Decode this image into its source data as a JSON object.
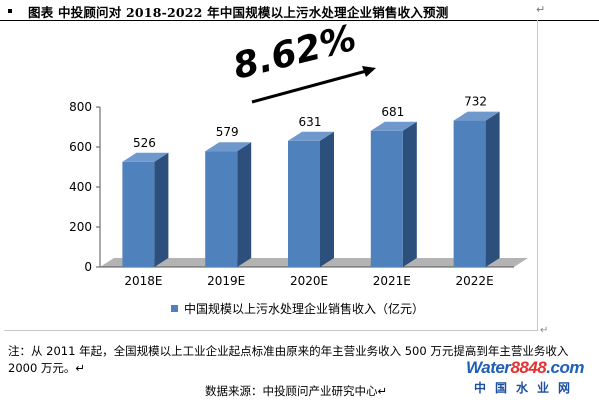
{
  "header": {
    "title": "图表   中投顾问对 2018-2022 年中国规模以上污水处理企业销售收入预测",
    "para_mark": "↵"
  },
  "chart_data": {
    "type": "bar",
    "categories": [
      "2018E",
      "2019E",
      "2020E",
      "2021E",
      "2022E"
    ],
    "series": [
      {
        "name": "中国规模以上污水处理企业销售收入（亿元）",
        "values": [
          526,
          579,
          631,
          681,
          732
        ]
      }
    ],
    "data_labels": [
      "526",
      "579",
      "631",
      "681",
      "732"
    ],
    "ylim": [
      0,
      800
    ],
    "yticks": [
      0,
      200,
      400,
      600,
      800
    ],
    "growth_annotation": "8.62%",
    "legend_position": "bottom",
    "grid": false,
    "colors": {
      "bar_front": "#4f81bd",
      "bar_side": "#2c4f7c",
      "bar_top": "#6f99cc",
      "floor": "#b3b3b3",
      "arrow": "#000000"
    }
  },
  "note": {
    "text": "注：从 2011 年起，全国规模以上工业企业起点标准由原来的年主营业务收入 500 万元提高到年主营业务收入 2000 万元。↵",
    "anchor_mark": "↵"
  },
  "source": "数据来源：中投顾问产业研究中心↵",
  "logo": {
    "water": "Water",
    "number": "8848",
    "domain": ".com",
    "name": "中国水业网",
    "colors": {
      "water": "#1f5fb6",
      "number": "#e53131",
      "domain": "#1f5fb6"
    }
  }
}
